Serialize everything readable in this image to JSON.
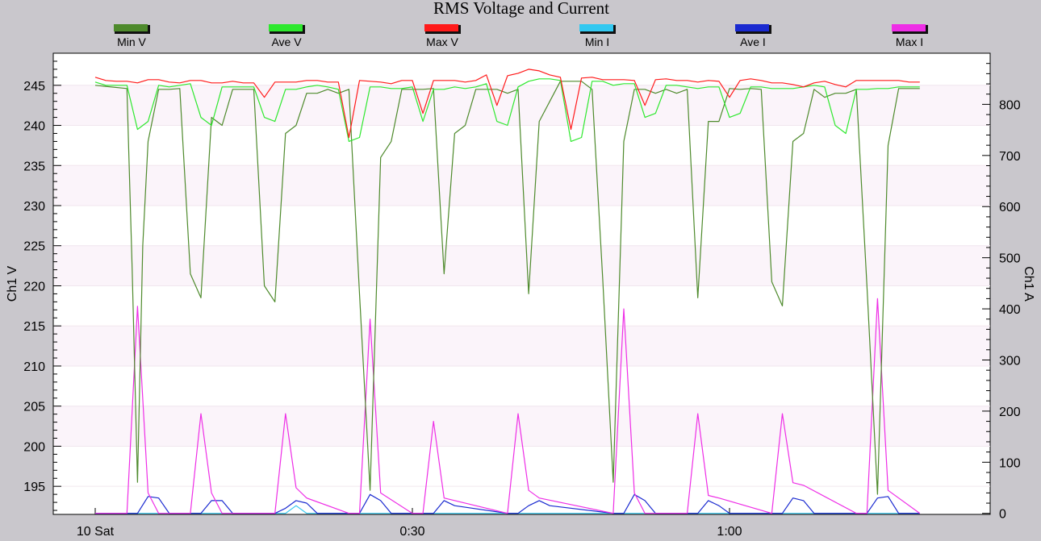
{
  "chart_data": {
    "type": "line",
    "title": "RMS Voltage and Current",
    "y_left": {
      "label": "Ch1 V",
      "ticks": [
        195,
        200,
        205,
        210,
        215,
        220,
        225,
        230,
        235,
        240,
        245
      ],
      "range": [
        191.5,
        249
      ]
    },
    "y_right": {
      "label": "Ch1 A",
      "ticks": [
        0,
        100,
        200,
        300,
        400,
        500,
        600,
        700,
        800
      ],
      "range": [
        -2,
        900
      ]
    },
    "x_axis": {
      "ticks": [
        "10 Sat",
        "0:30",
        "1:00"
      ],
      "tick_times_min": [
        0,
        30,
        60
      ]
    },
    "grid": true,
    "legend_position": "top",
    "colors": {
      "min_v": "#4e8a2c",
      "ave_v": "#2ee82e",
      "max_v": "#ff1a1a",
      "min_i": "#33c8f0",
      "ave_i": "#1a2ad0",
      "max_i": "#ee2ee6"
    },
    "series": [
      {
        "name": "Min V",
        "axis": "left",
        "color_key": "min_v",
        "x": [
          0,
          3,
          3.5,
          4,
          4.5,
          5,
          6,
          7,
          8,
          9,
          10,
          11,
          12,
          13,
          14,
          15,
          16,
          17,
          18,
          19,
          20,
          21,
          22,
          23,
          24,
          25,
          26,
          27,
          28,
          29,
          30,
          31,
          32,
          33,
          34,
          35,
          36,
          37,
          38,
          39,
          40,
          41,
          42,
          43,
          44,
          45,
          46,
          47,
          48,
          49,
          50,
          51,
          52,
          53,
          54,
          55,
          56,
          57,
          58,
          59,
          60,
          61,
          62,
          63,
          64,
          65,
          66,
          67,
          68,
          69,
          70,
          71,
          72,
          73,
          74,
          75,
          76,
          77,
          78
        ],
        "y": [
          245,
          244.6,
          222,
          195.5,
          225,
          238,
          244.5,
          244.5,
          244.6,
          221.5,
          218.5,
          241,
          240,
          244.5,
          244.5,
          244.5,
          220,
          218,
          239,
          240,
          244,
          244,
          244.5,
          244,
          244.5,
          219,
          194.5,
          236,
          238,
          244.5,
          244.5,
          244.5,
          244.6,
          221.5,
          239,
          240,
          244.5,
          244.5,
          244.5,
          244,
          244.5,
          219,
          240.5,
          243,
          245.5,
          245.5,
          245.5,
          244.5,
          221,
          195.5,
          238,
          244.5,
          244.5,
          244,
          244.5,
          244,
          244.5,
          218.5,
          240.5,
          240.5,
          244.6,
          244.5,
          244.6,
          244.5,
          220.5,
          217.5,
          238,
          239,
          244.5,
          243.5,
          244,
          244,
          244.5,
          220,
          194,
          237.5,
          244.6,
          244.6,
          244.6
        ]
      },
      {
        "name": "Ave V",
        "axis": "left",
        "color_key": "ave_v",
        "x": [
          0,
          1,
          2,
          3,
          4,
          5,
          6,
          7,
          8,
          9,
          10,
          11,
          12,
          13,
          14,
          15,
          16,
          17,
          18,
          19,
          20,
          21,
          22,
          23,
          24,
          25,
          26,
          27,
          28,
          29,
          30,
          31,
          32,
          33,
          34,
          35,
          36,
          37,
          38,
          39,
          40,
          41,
          42,
          43,
          44,
          45,
          46,
          47,
          48,
          49,
          50,
          51,
          52,
          53,
          54,
          55,
          56,
          57,
          58,
          59,
          60,
          61,
          62,
          63,
          64,
          65,
          66,
          67,
          68,
          69,
          70,
          71,
          72,
          73,
          74,
          75,
          76,
          77,
          78
        ],
        "y": [
          245.4,
          245,
          245,
          245,
          239.5,
          240.5,
          245,
          244.8,
          245,
          245.2,
          241,
          240,
          244.8,
          244.8,
          244.8,
          244.8,
          241,
          240.5,
          244.5,
          244.5,
          244.8,
          245,
          244.8,
          244.5,
          238,
          238.5,
          244.8,
          244.8,
          244.6,
          244.6,
          244.8,
          240.5,
          244.5,
          244.5,
          244.8,
          244.6,
          244.8,
          245.2,
          240.5,
          240,
          244.8,
          245.5,
          245.8,
          245.8,
          245.6,
          238,
          238.5,
          245.5,
          245.5,
          245,
          245.2,
          245.2,
          241,
          241.5,
          245,
          245,
          244.8,
          244.6,
          244.8,
          244.8,
          241,
          241.5,
          244.8,
          244.8,
          244.6,
          244.6,
          244.6,
          244.8,
          245,
          244.8,
          240,
          239,
          244.5,
          244.5,
          244.6,
          244.6,
          244.8,
          244.8,
          244.8
        ]
      },
      {
        "name": "Max V",
        "axis": "left",
        "color_key": "max_v",
        "x": [
          0,
          1,
          2,
          3,
          4,
          5,
          6,
          7,
          8,
          9,
          10,
          11,
          12,
          13,
          14,
          15,
          16,
          17,
          18,
          19,
          20,
          21,
          22,
          23,
          24,
          25,
          26,
          27,
          28,
          29,
          30,
          31,
          32,
          33,
          34,
          35,
          36,
          37,
          38,
          39,
          40,
          41,
          42,
          43,
          44,
          45,
          46,
          47,
          48,
          49,
          50,
          51,
          52,
          53,
          54,
          55,
          56,
          57,
          58,
          59,
          60,
          61,
          62,
          63,
          64,
          65,
          66,
          67,
          68,
          69,
          70,
          71,
          72,
          73,
          74,
          75,
          76,
          77,
          78
        ],
        "y": [
          246,
          245.6,
          245.5,
          245.5,
          245.3,
          245.7,
          245.7,
          245.4,
          245.3,
          245.6,
          245.6,
          245.3,
          245.3,
          245.5,
          245.3,
          245.3,
          243.5,
          245.4,
          245.4,
          245.4,
          245.6,
          245.6,
          245.4,
          245.4,
          238.5,
          245.6,
          245.5,
          245.4,
          245.2,
          245.6,
          245.6,
          241.5,
          245.6,
          245.6,
          245.6,
          245.4,
          245.6,
          246.3,
          242.5,
          246.2,
          246.5,
          247,
          246.8,
          246.3,
          246,
          239.5,
          245.9,
          246,
          245.7,
          245.7,
          245.7,
          245.6,
          242.5,
          245.7,
          245.8,
          245.6,
          245.6,
          245.4,
          245.6,
          245.5,
          243.5,
          245.6,
          245.8,
          245.6,
          245.3,
          245.3,
          245.1,
          244.8,
          245.3,
          245.5,
          245.1,
          244.8,
          245.6,
          245.6,
          245.6,
          245.6,
          245.6,
          245.4,
          245.4
        ]
      },
      {
        "name": "Min I",
        "axis": "right",
        "color_key": "min_i",
        "x": [
          0,
          3,
          4,
          5,
          6,
          9,
          10,
          11,
          12,
          17,
          18,
          19,
          20,
          24,
          25,
          26,
          27,
          30,
          31,
          32,
          33,
          39,
          40,
          41,
          42,
          49,
          50,
          51,
          52,
          56,
          57,
          58,
          59,
          64,
          65,
          66,
          67,
          72,
          73,
          74,
          75,
          78
        ],
        "y": [
          0,
          0,
          0,
          0,
          0,
          0,
          0,
          0,
          0,
          0,
          0,
          15,
          0,
          0,
          0,
          0,
          0,
          0,
          0,
          0,
          0,
          0,
          0,
          0,
          0,
          0,
          0,
          0,
          0,
          0,
          0,
          0,
          0,
          0,
          0,
          0,
          0,
          0,
          0,
          0,
          0,
          0
        ]
      },
      {
        "name": "Ave I",
        "axis": "right",
        "color_key": "ave_i",
        "x": [
          0,
          3,
          4,
          5,
          6,
          7,
          9,
          10,
          11,
          12,
          13,
          17,
          18,
          19,
          20,
          21,
          24,
          25,
          26,
          27,
          28,
          31,
          32,
          33,
          34,
          39,
          40,
          41,
          42,
          43,
          49,
          50,
          51,
          52,
          53,
          56,
          57,
          58,
          59,
          60,
          64,
          65,
          66,
          67,
          68,
          72,
          73,
          74,
          75,
          76,
          78
        ],
        "y": [
          0,
          0,
          0,
          33,
          30,
          0,
          0,
          0,
          25,
          25,
          0,
          0,
          10,
          25,
          20,
          0,
          0,
          0,
          37,
          25,
          0,
          0,
          0,
          25,
          15,
          0,
          0,
          15,
          25,
          15,
          0,
          0,
          37,
          25,
          0,
          0,
          0,
          25,
          15,
          0,
          0,
          0,
          30,
          25,
          0,
          0,
          0,
          30,
          33,
          0,
          0
        ]
      },
      {
        "name": "Max I",
        "axis": "right",
        "color_key": "max_i",
        "x": [
          0,
          3,
          4,
          5,
          6,
          9,
          10,
          11,
          12,
          17,
          18,
          19,
          20,
          24,
          25,
          26,
          27,
          30,
          31,
          32,
          33,
          39,
          40,
          41,
          42,
          49,
          50,
          51,
          52,
          56,
          57,
          58,
          59,
          64,
          65,
          66,
          67,
          72,
          73,
          74,
          75,
          78
        ],
        "y": [
          0,
          0,
          405,
          40,
          0,
          0,
          195,
          40,
          0,
          0,
          195,
          50,
          30,
          0,
          0,
          380,
          40,
          0,
          0,
          180,
          30,
          0,
          195,
          45,
          30,
          0,
          400,
          40,
          0,
          0,
          195,
          35,
          30,
          0,
          195,
          60,
          55,
          0,
          0,
          420,
          45,
          0
        ]
      }
    ]
  }
}
